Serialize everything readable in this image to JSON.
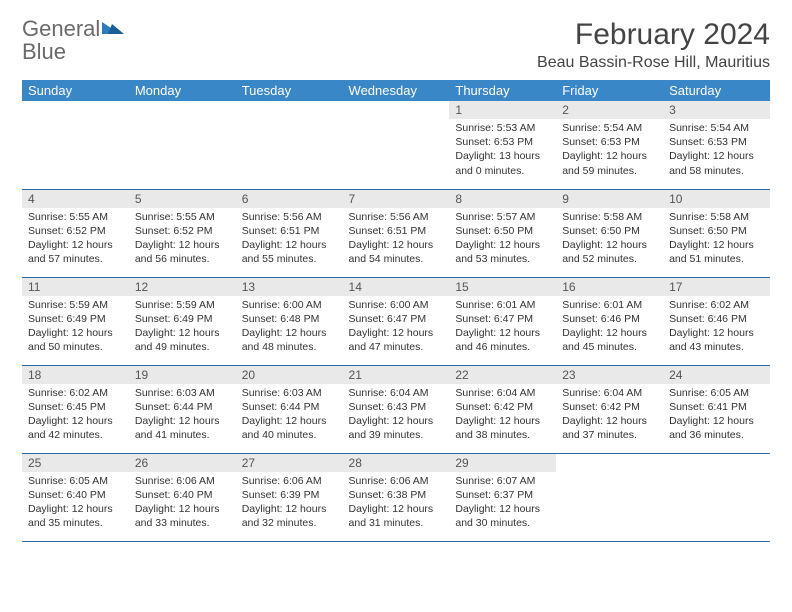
{
  "brand": {
    "part1": "General",
    "part2": "Blue"
  },
  "title": "February 2024",
  "location": "Beau Bassin-Rose Hill, Mauritius",
  "colors": {
    "header_bg": "#3a87c7",
    "header_text": "#ffffff",
    "daynum_bg": "#e9e9e9",
    "row_border": "#2a6aa0",
    "logo_gray": "#6a6a6a",
    "logo_blue": "#2a7bbf",
    "body_text": "#333333"
  },
  "typography": {
    "title_fontsize": 30,
    "location_fontsize": 16,
    "header_fontsize": 13,
    "daynum_fontsize": 12,
    "cell_fontsize": 10.5
  },
  "weekdays": [
    "Sunday",
    "Monday",
    "Tuesday",
    "Wednesday",
    "Thursday",
    "Friday",
    "Saturday"
  ],
  "weeks": [
    [
      {
        "empty": true
      },
      {
        "empty": true
      },
      {
        "empty": true
      },
      {
        "empty": true
      },
      {
        "day": "1",
        "sunrise": "Sunrise: 5:53 AM",
        "sunset": "Sunset: 6:53 PM",
        "daylight": "Daylight: 13 hours and 0 minutes."
      },
      {
        "day": "2",
        "sunrise": "Sunrise: 5:54 AM",
        "sunset": "Sunset: 6:53 PM",
        "daylight": "Daylight: 12 hours and 59 minutes."
      },
      {
        "day": "3",
        "sunrise": "Sunrise: 5:54 AM",
        "sunset": "Sunset: 6:53 PM",
        "daylight": "Daylight: 12 hours and 58 minutes."
      }
    ],
    [
      {
        "day": "4",
        "sunrise": "Sunrise: 5:55 AM",
        "sunset": "Sunset: 6:52 PM",
        "daylight": "Daylight: 12 hours and 57 minutes."
      },
      {
        "day": "5",
        "sunrise": "Sunrise: 5:55 AM",
        "sunset": "Sunset: 6:52 PM",
        "daylight": "Daylight: 12 hours and 56 minutes."
      },
      {
        "day": "6",
        "sunrise": "Sunrise: 5:56 AM",
        "sunset": "Sunset: 6:51 PM",
        "daylight": "Daylight: 12 hours and 55 minutes."
      },
      {
        "day": "7",
        "sunrise": "Sunrise: 5:56 AM",
        "sunset": "Sunset: 6:51 PM",
        "daylight": "Daylight: 12 hours and 54 minutes."
      },
      {
        "day": "8",
        "sunrise": "Sunrise: 5:57 AM",
        "sunset": "Sunset: 6:50 PM",
        "daylight": "Daylight: 12 hours and 53 minutes."
      },
      {
        "day": "9",
        "sunrise": "Sunrise: 5:58 AM",
        "sunset": "Sunset: 6:50 PM",
        "daylight": "Daylight: 12 hours and 52 minutes."
      },
      {
        "day": "10",
        "sunrise": "Sunrise: 5:58 AM",
        "sunset": "Sunset: 6:50 PM",
        "daylight": "Daylight: 12 hours and 51 minutes."
      }
    ],
    [
      {
        "day": "11",
        "sunrise": "Sunrise: 5:59 AM",
        "sunset": "Sunset: 6:49 PM",
        "daylight": "Daylight: 12 hours and 50 minutes."
      },
      {
        "day": "12",
        "sunrise": "Sunrise: 5:59 AM",
        "sunset": "Sunset: 6:49 PM",
        "daylight": "Daylight: 12 hours and 49 minutes."
      },
      {
        "day": "13",
        "sunrise": "Sunrise: 6:00 AM",
        "sunset": "Sunset: 6:48 PM",
        "daylight": "Daylight: 12 hours and 48 minutes."
      },
      {
        "day": "14",
        "sunrise": "Sunrise: 6:00 AM",
        "sunset": "Sunset: 6:47 PM",
        "daylight": "Daylight: 12 hours and 47 minutes."
      },
      {
        "day": "15",
        "sunrise": "Sunrise: 6:01 AM",
        "sunset": "Sunset: 6:47 PM",
        "daylight": "Daylight: 12 hours and 46 minutes."
      },
      {
        "day": "16",
        "sunrise": "Sunrise: 6:01 AM",
        "sunset": "Sunset: 6:46 PM",
        "daylight": "Daylight: 12 hours and 45 minutes."
      },
      {
        "day": "17",
        "sunrise": "Sunrise: 6:02 AM",
        "sunset": "Sunset: 6:46 PM",
        "daylight": "Daylight: 12 hours and 43 minutes."
      }
    ],
    [
      {
        "day": "18",
        "sunrise": "Sunrise: 6:02 AM",
        "sunset": "Sunset: 6:45 PM",
        "daylight": "Daylight: 12 hours and 42 minutes."
      },
      {
        "day": "19",
        "sunrise": "Sunrise: 6:03 AM",
        "sunset": "Sunset: 6:44 PM",
        "daylight": "Daylight: 12 hours and 41 minutes."
      },
      {
        "day": "20",
        "sunrise": "Sunrise: 6:03 AM",
        "sunset": "Sunset: 6:44 PM",
        "daylight": "Daylight: 12 hours and 40 minutes."
      },
      {
        "day": "21",
        "sunrise": "Sunrise: 6:04 AM",
        "sunset": "Sunset: 6:43 PM",
        "daylight": "Daylight: 12 hours and 39 minutes."
      },
      {
        "day": "22",
        "sunrise": "Sunrise: 6:04 AM",
        "sunset": "Sunset: 6:42 PM",
        "daylight": "Daylight: 12 hours and 38 minutes."
      },
      {
        "day": "23",
        "sunrise": "Sunrise: 6:04 AM",
        "sunset": "Sunset: 6:42 PM",
        "daylight": "Daylight: 12 hours and 37 minutes."
      },
      {
        "day": "24",
        "sunrise": "Sunrise: 6:05 AM",
        "sunset": "Sunset: 6:41 PM",
        "daylight": "Daylight: 12 hours and 36 minutes."
      }
    ],
    [
      {
        "day": "25",
        "sunrise": "Sunrise: 6:05 AM",
        "sunset": "Sunset: 6:40 PM",
        "daylight": "Daylight: 12 hours and 35 minutes."
      },
      {
        "day": "26",
        "sunrise": "Sunrise: 6:06 AM",
        "sunset": "Sunset: 6:40 PM",
        "daylight": "Daylight: 12 hours and 33 minutes."
      },
      {
        "day": "27",
        "sunrise": "Sunrise: 6:06 AM",
        "sunset": "Sunset: 6:39 PM",
        "daylight": "Daylight: 12 hours and 32 minutes."
      },
      {
        "day": "28",
        "sunrise": "Sunrise: 6:06 AM",
        "sunset": "Sunset: 6:38 PM",
        "daylight": "Daylight: 12 hours and 31 minutes."
      },
      {
        "day": "29",
        "sunrise": "Sunrise: 6:07 AM",
        "sunset": "Sunset: 6:37 PM",
        "daylight": "Daylight: 12 hours and 30 minutes."
      },
      {
        "empty": true
      },
      {
        "empty": true
      }
    ]
  ]
}
